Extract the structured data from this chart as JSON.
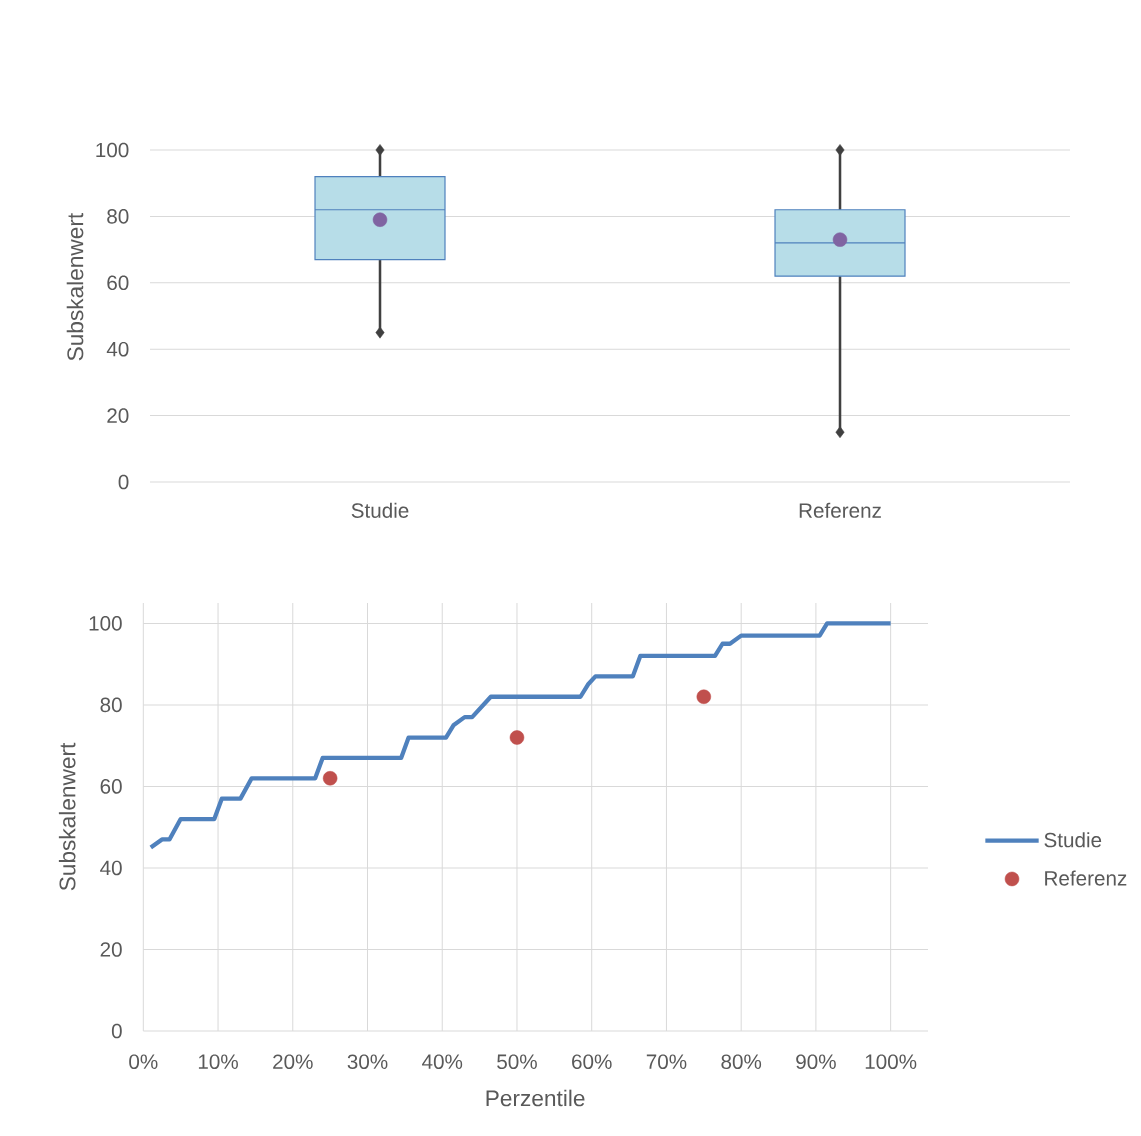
{
  "chart_data": [
    {
      "type": "box",
      "categories": [
        "Studie",
        "Referenz"
      ],
      "ylabel": "Subskalenwert",
      "ylim": [
        0,
        100
      ],
      "yticks": [
        0,
        20,
        40,
        60,
        80,
        100
      ],
      "grid": "y",
      "color": "#b7dde8",
      "boxes": [
        {
          "low": 45,
          "q1": 67,
          "median": 82,
          "q3": 92,
          "high": 100,
          "mean": 79
        },
        {
          "low": 15,
          "q1": 62,
          "median": 72,
          "q3": 82,
          "high": 100,
          "mean": 73
        }
      ],
      "series": [
        {
          "type": "scatter",
          "color": "#404040",
          "marker": "diamond",
          "x": [
            "Studie",
            "Studie",
            "Referenz",
            "Referenz"
          ],
          "values": [
            45,
            100,
            15,
            100
          ]
        }
      ]
    },
    {
      "type": "line",
      "xlabel": "Perzentile",
      "ylabel": "Subskalenwert",
      "xlim": [
        0,
        105
      ],
      "xticks": [
        {
          "value": 0,
          "label": "0%"
        },
        {
          "value": 10,
          "label": "10%"
        },
        {
          "value": 20,
          "label": "20%"
        },
        {
          "value": 30,
          "label": "30%"
        },
        {
          "value": 40,
          "label": "40%"
        },
        {
          "value": 50,
          "label": "50%"
        },
        {
          "value": 60,
          "label": "60%"
        },
        {
          "value": 70,
          "label": "70%"
        },
        {
          "value": 80,
          "label": "80%"
        },
        {
          "value": 90,
          "label": "90%"
        },
        {
          "value": 100,
          "label": "100%"
        }
      ],
      "ylim": [
        0,
        105
      ],
      "yticks": [
        0,
        20,
        40,
        60,
        80,
        100
      ],
      "grid": true,
      "legend": "right",
      "series": [
        {
          "name": "Studie",
          "color": "#4f81bd",
          "x": [
            1,
            2.5,
            3.5,
            5,
            9.5,
            10.5,
            13,
            14.5,
            23,
            24,
            34.5,
            35.5,
            40.5,
            41.5,
            43,
            44,
            46.5,
            58.5,
            59.5,
            60.5,
            65.5,
            66.5,
            76.5,
            77.5,
            78.5,
            80,
            90.5,
            91.5,
            100
          ],
          "values": [
            45,
            47,
            47,
            52,
            52,
            57,
            57,
            62,
            62,
            67,
            67,
            72,
            72,
            75,
            77,
            77,
            82,
            82,
            85,
            87,
            87,
            92,
            92,
            95,
            95,
            97,
            97,
            100,
            100
          ]
        },
        {
          "name": "Referenz",
          "type": "scatter",
          "color": "#c0504d",
          "marker": "circle",
          "x": [
            25,
            50,
            75
          ],
          "values": [
            62,
            72,
            82
          ]
        }
      ]
    }
  ]
}
